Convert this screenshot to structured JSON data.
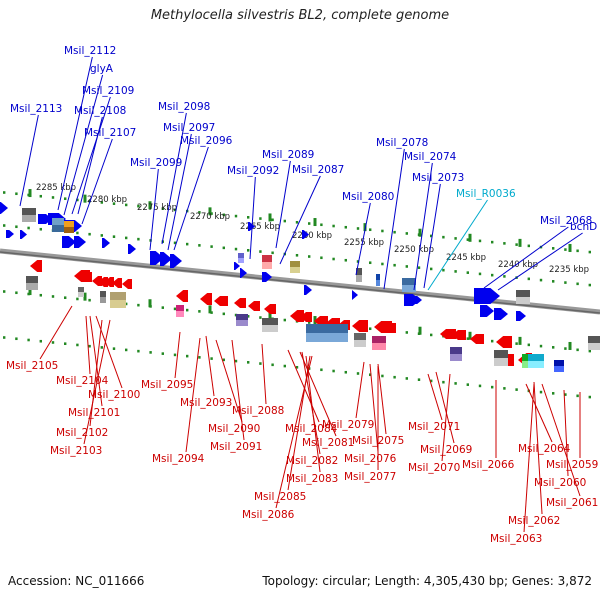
{
  "title": "Methylocella silvestris BL2, complete genome",
  "accession_text": "Accession: NC_011666",
  "summary_text": "Topology: circular; Length: 4,305,430 bp; Genes: 3,872",
  "colors": {
    "top_label": "#0000cc",
    "bottom_label": "#cc0000",
    "rna_label": "#00aacc",
    "forward_gene": "#0000ee",
    "reverse_gene": "#ee0000",
    "tick": "#228822",
    "backbone": "#888888"
  },
  "scale_ticks": [
    "2285 kbp",
    "2280 kbp",
    "2275 kbp",
    "2270 kbp",
    "2265 kbp",
    "2260 kbp",
    "2255 kbp",
    "2250 kbp",
    "2245 kbp",
    "2240 kbp",
    "2235 kbp"
  ],
  "top_labels": [
    "Msil_2112",
    "glyA",
    "Msil_2109",
    "Msil_2113",
    "Msil_2108",
    "Msil_2107",
    "Msil_2098",
    "Msil_2097",
    "Msil_2096",
    "Msil_2099",
    "Msil_2089",
    "Msil_2092",
    "Msil_2087",
    "Msil_2078",
    "Msil_2074",
    "Msil_2073",
    "Msil_2080",
    "Msil_R0036",
    "Msil_2068",
    "bchD"
  ],
  "bottom_labels": [
    "Msil_2105",
    "Msil_2104",
    "Msil_2100",
    "Msil_2101",
    "Msil_2102",
    "Msil_2103",
    "Msil_2095",
    "Msil_2093",
    "Msil_2094",
    "Msil_2090",
    "Msil_2091",
    "Msil_2088",
    "Msil_2084",
    "Msil_2081",
    "Msil_2082",
    "Msil_2083",
    "Msil_2085",
    "Msil_2086",
    "Msil_2079",
    "Msil_2075",
    "Msil_2076",
    "Msil_2077",
    "Msil_2071",
    "Msil_2069",
    "Msil_2070",
    "Msil_2066",
    "Msil_2064",
    "Msil_2060",
    "Msil_2059",
    "Msil_2061",
    "Msil_2062",
    "Msil_2063"
  ]
}
